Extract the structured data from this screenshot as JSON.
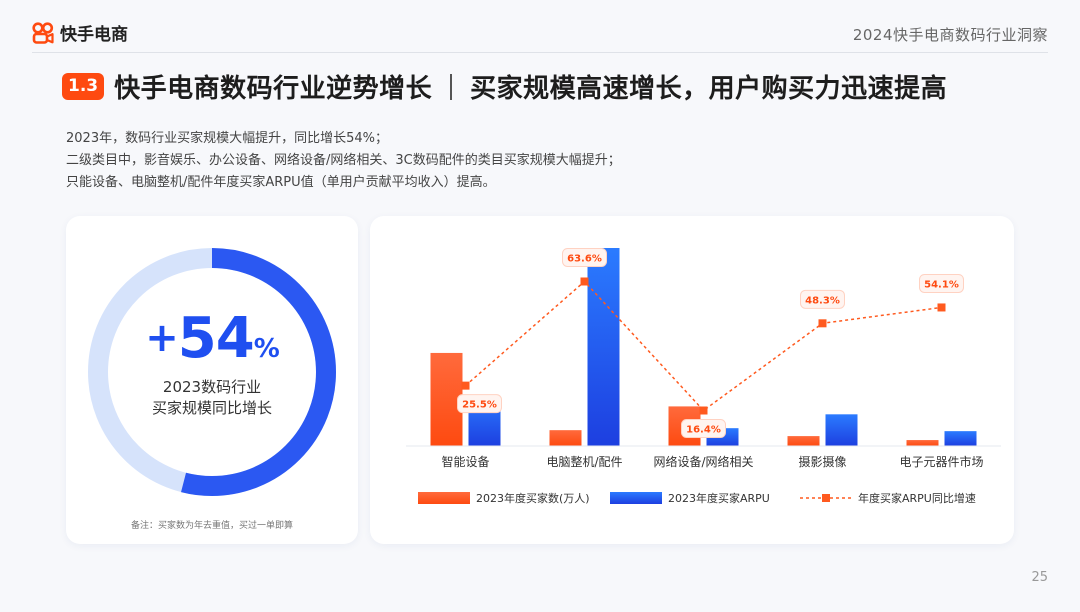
{
  "header": {
    "brand": "快手电商",
    "report_title": "2024快手电商数码行业洞察"
  },
  "headline": {
    "section": "1.3",
    "main": "快手电商数码行业逆势增长",
    "sub": "买家规模高速增长，用户购买力迅速提高"
  },
  "description": [
    "2023年，数码行业买家规模大幅提升，同比增长54%；",
    "二级类目中，影音娱乐、办公设备、网络设备/网络相关、3C数码配件的类目买家规模大幅提升；",
    "只能设备、电脑整机/配件年度买家ARPU值（单用户贡献平均收入）提高。"
  ],
  "kpi": {
    "plus": "+",
    "number": "54",
    "percent": "%",
    "value_fraction": 0.54,
    "caption_line1": "2023数码行业",
    "caption_line2": "买家规模同比增长",
    "note": "备注：买家数为年去重值，买过一单即算",
    "colors": {
      "ring": "#2b58f2",
      "track": "#d6e3fb"
    }
  },
  "chart_data": {
    "type": "bar",
    "categories": [
      "智能设备",
      "电脑整机/配件",
      "网络设备/网络相关",
      "摄影摄像",
      "电子元器件市场"
    ],
    "series": [
      {
        "name": "2023年度买家数(万人)",
        "kind": "bar",
        "color": "#fe4a10",
        "values": [
          47,
          8,
          20,
          5,
          3
        ]
      },
      {
        "name": "2023年度买家ARPU",
        "kind": "bar",
        "color": "#1f4ff0",
        "values": [
          25,
          100,
          9,
          16,
          7.5
        ]
      },
      {
        "name": "年度买家ARPU同比增速",
        "kind": "line",
        "color": "#ff5a1f",
        "values": [
          25.5,
          63.6,
          16.4,
          48.3,
          54.1
        ],
        "labels": [
          "25.5%",
          "63.6%",
          "16.4%",
          "48.3%",
          "54.1%"
        ]
      }
    ],
    "legend_position": "bottom",
    "grid": false
  },
  "page_number": "25"
}
